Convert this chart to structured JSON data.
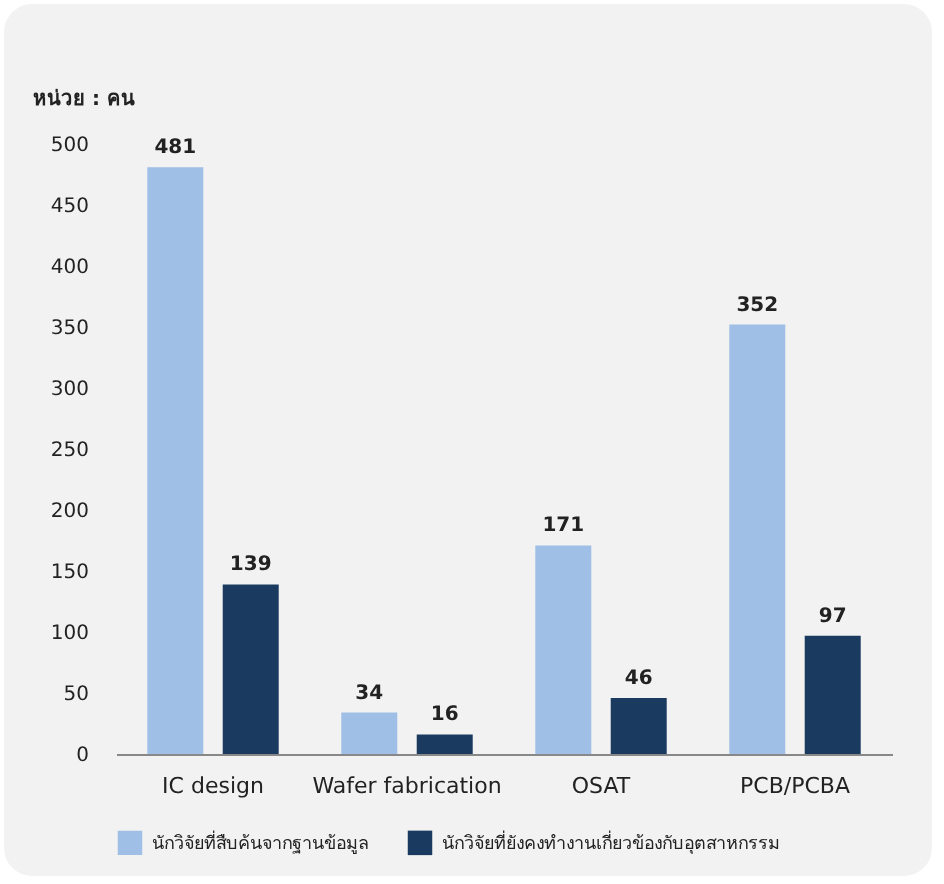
{
  "chart_data": {
    "type": "bar",
    "ylabel": "หน่วย : คน",
    "categories": [
      "IC design",
      "Wafer fabrication",
      "OSAT",
      "PCB/PCBA"
    ],
    "series": [
      {
        "name": "นักวิจัยที่สืบค้นจากฐานข้อมูล",
        "color": "#9fbfe6",
        "values": [
          481,
          34,
          171,
          352
        ]
      },
      {
        "name": "นักวิจัยที่ยังคงทำงานเกี่ยวข้องกับอุตสาหกรรม",
        "color": "#1b3a60",
        "values": [
          139,
          16,
          46,
          97
        ]
      }
    ],
    "ylim": [
      0,
      500
    ],
    "yticks": [
      0,
      50,
      100,
      150,
      200,
      250,
      300,
      350,
      400,
      450,
      500
    ],
    "grid": false,
    "legend": "bottom",
    "data_labels": true
  }
}
